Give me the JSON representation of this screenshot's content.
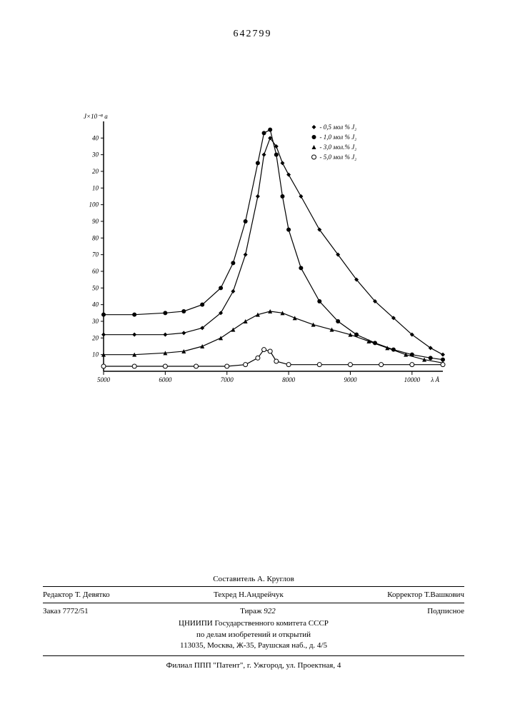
{
  "page_number": "642799",
  "chart": {
    "type": "line",
    "y_label": "J×10⁻⁸ a",
    "x_label": "λ Å",
    "xlim": [
      5000,
      10500
    ],
    "xticks": [
      5000,
      6000,
      7000,
      8000,
      9000,
      10000
    ],
    "yticks_lower": [
      10,
      20,
      30,
      40,
      50,
      60,
      70,
      80,
      90,
      100
    ],
    "yticks_upper": [
      10,
      20,
      30,
      40
    ],
    "background_color": "#ffffff",
    "axis_color": "#000000",
    "line_color": "#000000",
    "line_width": 1.2,
    "font_size_axis": 9,
    "legend": [
      {
        "marker": "filled-diamond",
        "label": "- 0,5 мол % J₂"
      },
      {
        "marker": "filled-circle",
        "label": "- 1,0 мол % J₂"
      },
      {
        "marker": "filled-triangle",
        "label": "- 3,0 мол.% J₂"
      },
      {
        "marker": "open-circle",
        "label": "- 5,0 мол % J₂"
      }
    ],
    "series": [
      {
        "name": "0.5 mol% J2",
        "marker": "filled-diamond",
        "points": [
          [
            5000,
            22
          ],
          [
            5500,
            22
          ],
          [
            6000,
            22
          ],
          [
            6300,
            23
          ],
          [
            6600,
            26
          ],
          [
            6900,
            35
          ],
          [
            7100,
            48
          ],
          [
            7300,
            70
          ],
          [
            7500,
            105
          ],
          [
            7600,
            130
          ],
          [
            7700,
            140
          ],
          [
            7800,
            135
          ],
          [
            7900,
            125
          ],
          [
            8000,
            118
          ],
          [
            8200,
            105
          ],
          [
            8500,
            85
          ],
          [
            8800,
            70
          ],
          [
            9100,
            55
          ],
          [
            9400,
            42
          ],
          [
            9700,
            32
          ],
          [
            10000,
            22
          ],
          [
            10300,
            14
          ],
          [
            10500,
            10
          ]
        ]
      },
      {
        "name": "1.0 mol% J2",
        "marker": "filled-circle",
        "points": [
          [
            5000,
            34
          ],
          [
            5500,
            34
          ],
          [
            6000,
            35
          ],
          [
            6300,
            36
          ],
          [
            6600,
            40
          ],
          [
            6900,
            50
          ],
          [
            7100,
            65
          ],
          [
            7300,
            90
          ],
          [
            7500,
            125
          ],
          [
            7600,
            143
          ],
          [
            7700,
            145
          ],
          [
            7800,
            130
          ],
          [
            7900,
            105
          ],
          [
            8000,
            85
          ],
          [
            8200,
            62
          ],
          [
            8500,
            42
          ],
          [
            8800,
            30
          ],
          [
            9100,
            22
          ],
          [
            9400,
            17
          ],
          [
            9700,
            13
          ],
          [
            10000,
            10
          ],
          [
            10300,
            8
          ],
          [
            10500,
            7
          ]
        ]
      },
      {
        "name": "3.0 mol% J2",
        "marker": "filled-triangle",
        "points": [
          [
            5000,
            10
          ],
          [
            5500,
            10
          ],
          [
            6000,
            11
          ],
          [
            6300,
            12
          ],
          [
            6600,
            15
          ],
          [
            6900,
            20
          ],
          [
            7100,
            25
          ],
          [
            7300,
            30
          ],
          [
            7500,
            34
          ],
          [
            7700,
            36
          ],
          [
            7900,
            35
          ],
          [
            8100,
            32
          ],
          [
            8400,
            28
          ],
          [
            8700,
            25
          ],
          [
            9000,
            22
          ],
          [
            9300,
            18
          ],
          [
            9600,
            14
          ],
          [
            9900,
            10
          ],
          [
            10200,
            7
          ],
          [
            10500,
            5
          ]
        ]
      },
      {
        "name": "5.0 mol% J2",
        "marker": "open-circle",
        "points": [
          [
            5000,
            3
          ],
          [
            5500,
            3
          ],
          [
            6000,
            3
          ],
          [
            6500,
            3
          ],
          [
            7000,
            3
          ],
          [
            7300,
            4
          ],
          [
            7500,
            8
          ],
          [
            7600,
            13
          ],
          [
            7700,
            12
          ],
          [
            7800,
            6
          ],
          [
            8000,
            4
          ],
          [
            8500,
            4
          ],
          [
            9000,
            4
          ],
          [
            9500,
            4
          ],
          [
            10000,
            4
          ],
          [
            10500,
            4
          ]
        ]
      }
    ]
  },
  "footer": {
    "editor_label": "Редактор",
    "editor_name": "Т. Девятко",
    "compiler_label": "Составитель",
    "compiler_name": "А. Круглов",
    "techred_label": "Техред",
    "techred_name": "Н.Андрейчук",
    "corrector_label": "Корректор",
    "corrector_name": "Т.Вашкович",
    "order_label": "Заказ",
    "order_no": "7772/51",
    "tirazh_label": "Тираж",
    "tirazh_no": "922",
    "subscription": "Подписное",
    "org_line1": "ЦНИИПИ Государственного комитета СССР",
    "org_line2": "по делам изобретений и открытий",
    "org_addr": "113035, Москва, Ж-35, Раушская наб., д. 4/5",
    "branch": "Филиал ППП \"Патент\", г. Ужгород, ул. Проектная, 4"
  }
}
